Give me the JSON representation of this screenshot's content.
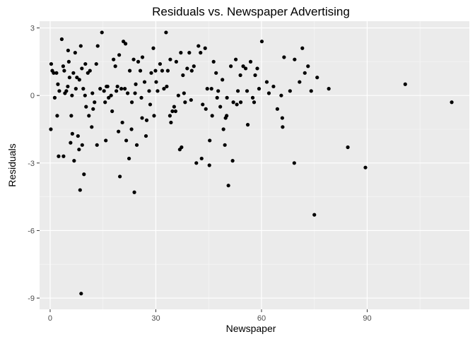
{
  "chart_data": {
    "type": "scatter",
    "title": "Residuals vs. Newspaper Advertising",
    "xlabel": "Newspaper",
    "ylabel": "Residuals",
    "xlim": [
      -3,
      119
    ],
    "ylim": [
      -9.5,
      3.3
    ],
    "x_ticks": [
      0,
      30,
      60,
      90
    ],
    "y_ticks": [
      3,
      0,
      -3,
      -6,
      -9
    ],
    "grid": true,
    "legend": "none",
    "colors": {
      "panel_background": "#ebebeb",
      "grid_major": "#ffffff",
      "grid_minor": "#f5f5f5",
      "point": "#000000",
      "tick_mark": "#333333"
    },
    "points": [
      [
        0.3,
        1.4
      ],
      [
        0.6,
        1.1
      ],
      [
        1.0,
        1.0
      ],
      [
        1.8,
        1.0
      ],
      [
        2.2,
        0.5
      ],
      [
        2.6,
        0.2
      ],
      [
        3.3,
        2.5
      ],
      [
        3.7,
        1.3
      ],
      [
        4.0,
        1.1
      ],
      [
        4.6,
        0.2
      ],
      [
        5.1,
        2.0
      ],
      [
        5.3,
        1.5
      ],
      [
        5.5,
        0.8
      ],
      [
        6.2,
        0.0
      ],
      [
        6.6,
        1.0
      ],
      [
        7.1,
        1.9
      ],
      [
        7.6,
        0.8
      ],
      [
        8.3,
        0.7
      ],
      [
        8.7,
        2.2
      ],
      [
        9.0,
        1.2
      ],
      [
        9.4,
        0.3
      ],
      [
        10.0,
        1.4
      ],
      [
        10.7,
        1.0
      ],
      [
        11.3,
        1.1
      ],
      [
        12.0,
        0.1
      ],
      [
        12.6,
        -0.3
      ],
      [
        13.1,
        1.4
      ],
      [
        13.5,
        2.2
      ],
      [
        14.2,
        0.3
      ],
      [
        14.7,
        2.8
      ],
      [
        15.3,
        0.2
      ],
      [
        16.0,
        0.4
      ],
      [
        16.6,
        -0.1
      ],
      [
        17.3,
        0.0
      ],
      [
        18.0,
        1.6
      ],
      [
        18.5,
        1.3
      ],
      [
        19.1,
        0.4
      ],
      [
        19.6,
        1.8
      ],
      [
        20.2,
        0.3
      ],
      [
        20.8,
        2.4
      ],
      [
        21.4,
        2.3
      ],
      [
        22.0,
        0.1
      ],
      [
        22.6,
        1.1
      ],
      [
        23.2,
        -0.3
      ],
      [
        23.7,
        1.6
      ],
      [
        24.3,
        0.5
      ],
      [
        25.0,
        1.5
      ],
      [
        25.6,
        1.1
      ],
      [
        26.2,
        1.7
      ],
      [
        26.8,
        0.6
      ],
      [
        27.4,
        -1.1
      ],
      [
        28.1,
        0.2
      ],
      [
        28.7,
        1.0
      ],
      [
        29.3,
        2.1
      ],
      [
        29.9,
        1.1
      ],
      [
        30.5,
        0.2
      ],
      [
        31.2,
        1.4
      ],
      [
        31.8,
        1.1
      ],
      [
        32.3,
        0.3
      ],
      [
        32.9,
        2.8
      ],
      [
        33.4,
        1.1
      ],
      [
        34.1,
        1.6
      ],
      [
        34.7,
        -0.7
      ],
      [
        35.2,
        -0.5
      ],
      [
        35.8,
        1.5
      ],
      [
        36.4,
        0.0
      ],
      [
        37.1,
        1.9
      ],
      [
        37.7,
        0.9
      ],
      [
        38.3,
        -0.3
      ],
      [
        38.9,
        1.2
      ],
      [
        39.5,
        1.9
      ],
      [
        40.2,
        1.1
      ],
      [
        40.8,
        1.3
      ],
      [
        41.5,
        -3.0
      ],
      [
        42.1,
        2.2
      ],
      [
        42.7,
        1.9
      ],
      [
        43.3,
        -0.4
      ],
      [
        44.0,
        2.1
      ],
      [
        44.6,
        0.3
      ],
      [
        45.2,
        -3.1
      ],
      [
        45.8,
        0.3
      ],
      [
        46.4,
        1.5
      ],
      [
        47.1,
        1.0
      ],
      [
        47.7,
        0.2
      ],
      [
        48.3,
        -0.5
      ],
      [
        48.9,
        0.7
      ],
      [
        49.6,
        -2.2
      ],
      [
        50.2,
        -0.1
      ],
      [
        50.6,
        -4.0
      ],
      [
        51.3,
        1.3
      ],
      [
        52.0,
        -0.3
      ],
      [
        52.7,
        1.6
      ],
      [
        53.3,
        0.2
      ],
      [
        54.0,
        0.9
      ],
      [
        54.8,
        1.3
      ],
      [
        55.5,
        1.2
      ],
      [
        56.1,
        -1.3
      ],
      [
        56.9,
        1.5
      ],
      [
        57.5,
        -0.1
      ],
      [
        58.2,
        0.9
      ],
      [
        58.8,
        1.2
      ],
      [
        59.3,
        0.3
      ],
      [
        60.1,
        2.4
      ],
      [
        62.1,
        0.1
      ],
      [
        63.4,
        0.4
      ],
      [
        64.5,
        -0.6
      ],
      [
        65.6,
        0.0
      ],
      [
        66.0,
        -1.4
      ],
      [
        66.4,
        1.7
      ],
      [
        68.1,
        0.2
      ],
      [
        69.4,
        1.6
      ],
      [
        70.8,
        0.6
      ],
      [
        71.6,
        2.1
      ],
      [
        72.3,
        1.0
      ],
      [
        73.2,
        1.3
      ],
      [
        74.1,
        0.2
      ],
      [
        75.0,
        -5.3
      ],
      [
        75.8,
        0.8
      ],
      [
        79.1,
        0.3
      ],
      [
        84.5,
        -2.3
      ],
      [
        89.5,
        -3.2
      ],
      [
        100.8,
        0.5
      ],
      [
        114.0,
        -0.3
      ],
      [
        0.2,
        -1.5
      ],
      [
        2.0,
        -0.9
      ],
      [
        2.4,
        -2.7
      ],
      [
        3.8,
        -2.7
      ],
      [
        5.8,
        -2.1
      ],
      [
        6.0,
        -0.9
      ],
      [
        6.3,
        -1.7
      ],
      [
        6.8,
        -2.9
      ],
      [
        7.9,
        -1.8
      ],
      [
        8.2,
        -2.4
      ],
      [
        8.5,
        -4.2
      ],
      [
        8.8,
        -8.8
      ],
      [
        9.1,
        -2.2
      ],
      [
        9.6,
        -3.5
      ],
      [
        10.2,
        -0.5
      ],
      [
        11.8,
        -1.4
      ],
      [
        13.3,
        -2.2
      ],
      [
        15.8,
        -2.0
      ],
      [
        19.4,
        -1.6
      ],
      [
        19.8,
        -3.6
      ],
      [
        20.5,
        -1.2
      ],
      [
        21.6,
        -2.0
      ],
      [
        22.4,
        -2.8
      ],
      [
        23.1,
        -1.5
      ],
      [
        23.9,
        -4.3
      ],
      [
        24.6,
        -2.2
      ],
      [
        26.1,
        -1.0
      ],
      [
        27.2,
        -1.8
      ],
      [
        29.5,
        -0.9
      ],
      [
        34.3,
        -1.2
      ],
      [
        36.8,
        -2.4
      ],
      [
        37.3,
        -2.3
      ],
      [
        43.0,
        -2.8
      ],
      [
        45.3,
        -2.0
      ],
      [
        46.0,
        -0.9
      ],
      [
        49.2,
        -1.5
      ],
      [
        49.8,
        -1.0
      ],
      [
        50.1,
        -0.9
      ],
      [
        51.8,
        -2.9
      ],
      [
        54.1,
        -0.3
      ],
      [
        57.9,
        -0.3
      ],
      [
        65.9,
        -1.0
      ],
      [
        69.3,
        -3.0
      ],
      [
        34.0,
        -0.9
      ],
      [
        35.6,
        -0.7
      ],
      [
        28.4,
        -0.4
      ],
      [
        17.6,
        -0.7
      ],
      [
        11.0,
        -0.9
      ],
      [
        12.2,
        -0.6
      ],
      [
        4.2,
        0.1
      ],
      [
        5.0,
        0.4
      ],
      [
        7.3,
        0.3
      ],
      [
        9.9,
        0.0
      ],
      [
        15.6,
        -0.3
      ],
      [
        16.3,
        0.4
      ],
      [
        18.8,
        0.2
      ],
      [
        21.2,
        0.3
      ],
      [
        24.1,
        0.1
      ],
      [
        25.9,
        -0.1
      ],
      [
        30.1,
        0.6
      ],
      [
        33.1,
        0.4
      ],
      [
        38.0,
        0.1
      ],
      [
        40.0,
        -0.2
      ],
      [
        44.2,
        -0.6
      ],
      [
        47.4,
        -0.1
      ],
      [
        53.0,
        -0.4
      ],
      [
        55.9,
        0.2
      ],
      [
        61.5,
        0.6
      ],
      [
        1.3,
        -0.1
      ]
    ]
  }
}
